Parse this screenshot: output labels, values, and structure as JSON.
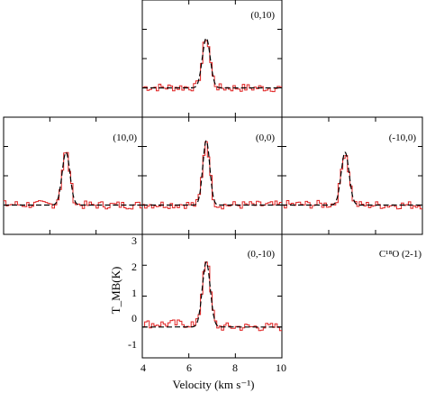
{
  "chart_data": {
    "type": "line",
    "molecule_label": "C¹⁸O (2-1)",
    "xlabel": "Velocity (km s⁻¹)",
    "ylabel": "T_MB(K)",
    "xlim": [
      4,
      10
    ],
    "ylim": [
      -1,
      3
    ],
    "x_ticks": [
      "4",
      "6",
      "8",
      "10"
    ],
    "y_ticks": [
      "-1",
      "0",
      "1",
      "2",
      "3"
    ],
    "series_types": [
      "observed",
      "gaussian_fit"
    ],
    "panels": [
      {
        "offset": "(0,10)",
        "peak_velocity": 6.75,
        "peak": 1.7,
        "fit_amplitude": 1.7,
        "fit_sigma": 0.17
      },
      {
        "offset": "(10,0)",
        "peak_velocity": 6.7,
        "peak": 1.8,
        "fit_amplitude": 1.8,
        "fit_sigma": 0.17
      },
      {
        "offset": "(0,0)",
        "peak_velocity": 6.75,
        "peak": 2.2,
        "fit_amplitude": 2.2,
        "fit_sigma": 0.15
      },
      {
        "offset": "(-10,0)",
        "peak_velocity": 6.7,
        "peak": 1.8,
        "fit_amplitude": 1.8,
        "fit_sigma": 0.17
      },
      {
        "offset": "(0,-10)",
        "peak_velocity": 6.75,
        "peak": 2.2,
        "fit_amplitude": 2.1,
        "fit_sigma": 0.17
      }
    ]
  }
}
